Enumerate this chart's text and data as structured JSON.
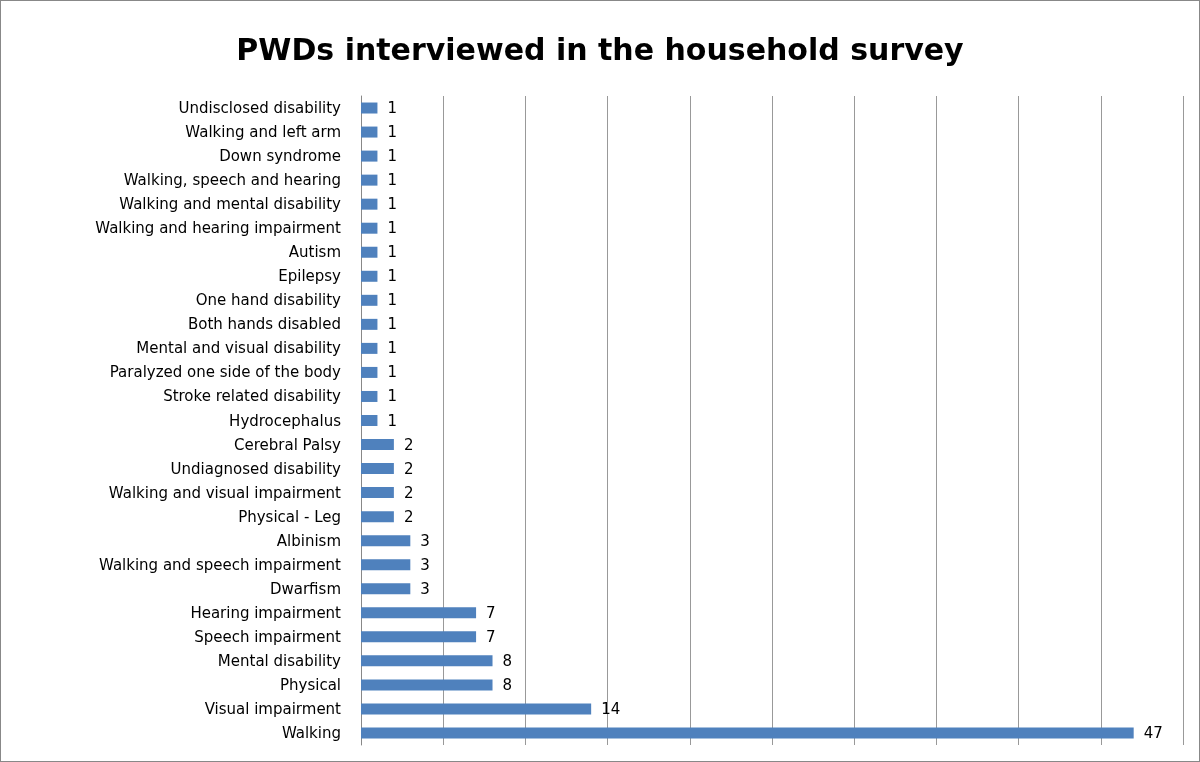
{
  "chart_data": {
    "type": "bar",
    "orientation": "horizontal",
    "title": "PWDs interviewed in the household survey",
    "categories": [
      "Undisclosed disability",
      "Walking and left arm",
      "Down syndrome",
      "Walking, speech and hearing",
      "Walking and mental disability",
      "Walking and hearing impairment",
      "Autism",
      "Epilepsy",
      "One hand disability",
      "Both hands disabled",
      "Mental and visual disability",
      "Paralyzed one side of the body",
      "Stroke related disability",
      "Hydrocephalus",
      "Cerebral Palsy",
      "Undiagnosed disability",
      "Walking and visual impairment",
      "Physical - Leg",
      "Albinism",
      "Walking and speech impairment",
      "Dwarfism",
      "Hearing impairment",
      "Speech impairment",
      "Mental disability",
      "Physical",
      "Visual impairment",
      "Walking"
    ],
    "values": [
      1,
      1,
      1,
      1,
      1,
      1,
      1,
      1,
      1,
      1,
      1,
      1,
      1,
      1,
      2,
      2,
      2,
      2,
      3,
      3,
      3,
      7,
      7,
      8,
      8,
      14,
      47
    ],
    "color": "#4f81bd",
    "data_labels": true,
    "grid": "x",
    "tick_labels": "y",
    "xlim": [
      0,
      50
    ],
    "xticks": [
      {
        "value": 0,
        "label": null
      },
      {
        "value": 5,
        "label": null
      },
      {
        "value": 10,
        "label": null
      },
      {
        "value": 15,
        "label": null
      },
      {
        "value": 20,
        "label": null
      },
      {
        "value": 25,
        "label": null
      },
      {
        "value": 30,
        "label": null
      },
      {
        "value": 35,
        "label": null
      },
      {
        "value": 40,
        "label": null
      },
      {
        "value": 45,
        "label": null
      },
      {
        "value": 50,
        "label": null
      }
    ]
  }
}
